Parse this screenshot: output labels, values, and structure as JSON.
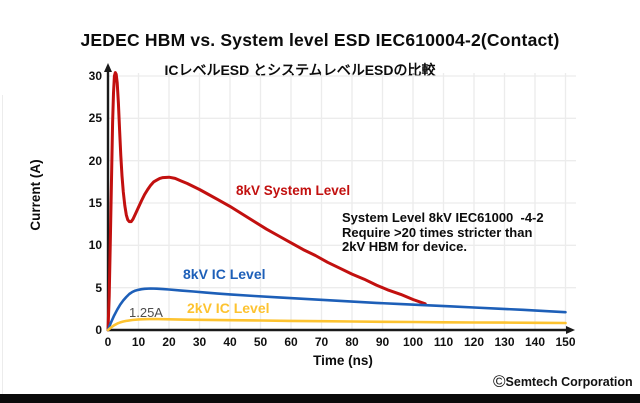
{
  "page": {
    "title": "JEDEC HBM vs. System level ESD IEC610004-2(Contact)",
    "subtitle": "ICレベルESD とシステムレベルESDの比較",
    "copyright_symbol": "©",
    "copyright_text": "Semtech Corporation"
  },
  "annotation": {
    "line1": "System Level 8kV IEC61000  -4-2",
    "line2": "Require >20 times stricter than",
    "line3": "2kV HBM for device."
  },
  "labels": {
    "system_level": "8kV System Level",
    "ic_8kv": "8kV IC Level",
    "ic_2kv": "2kV IC Level",
    "current_marker": "1.25A"
  },
  "colors": {
    "red": "#c2100f",
    "blue": "#1d5fb8",
    "yellow": "#fdc330",
    "axis": "#1a1a1a",
    "grid": "#ececec",
    "gray_label": "#4d4d4d"
  },
  "chart_data": {
    "type": "line",
    "title": "JEDEC HBM vs. System level ESD IEC610004-2(Contact)",
    "subtitle": "ICレベルESD とシステムレベルESDの比較",
    "xlabel": "Time (ns)",
    "ylabel": "Current (A)",
    "xlim": [
      0,
      150
    ],
    "ylim": [
      0,
      30
    ],
    "x_ticks": [
      0,
      10,
      20,
      30,
      40,
      50,
      60,
      70,
      80,
      90,
      100,
      110,
      120,
      130,
      140,
      150
    ],
    "y_ticks": [
      0,
      5,
      10,
      15,
      20,
      25,
      30
    ],
    "grid": true,
    "legend_position": "inline-labels",
    "annotations": [
      "System Level 8kV IEC61000  -4-2 Require >20 times stricter than 2kV HBM for device.",
      "1.25A marker on 2kV IC Level curve"
    ],
    "series": [
      {
        "name": "8kV System Level",
        "color": "#c2100f",
        "width": 3,
        "points": [
          [
            0,
            0
          ],
          [
            0.4,
            4
          ],
          [
            0.8,
            11
          ],
          [
            1.2,
            19
          ],
          [
            1.5,
            24.5
          ],
          [
            1.8,
            28
          ],
          [
            2.1,
            30
          ],
          [
            2.4,
            30.4
          ],
          [
            2.7,
            30.2
          ],
          [
            3.0,
            29.2
          ],
          [
            3.4,
            26.8
          ],
          [
            3.8,
            23.6
          ],
          [
            4.2,
            20.6
          ],
          [
            4.6,
            18.2
          ],
          [
            5.0,
            16.3
          ],
          [
            5.5,
            14.7
          ],
          [
            6.0,
            13.6
          ],
          [
            6.5,
            13.0
          ],
          [
            7.0,
            12.8
          ],
          [
            7.6,
            12.8
          ],
          [
            8.2,
            13.1
          ],
          [
            9,
            13.7
          ],
          [
            10,
            14.5
          ],
          [
            11,
            15.3
          ],
          [
            12,
            16.0
          ],
          [
            13,
            16.6
          ],
          [
            14,
            17.1
          ],
          [
            15,
            17.5
          ],
          [
            16,
            17.7
          ],
          [
            17,
            17.9
          ],
          [
            18,
            18.0
          ],
          [
            20,
            18.05
          ],
          [
            22,
            17.9
          ],
          [
            24,
            17.6
          ],
          [
            26,
            17.3
          ],
          [
            28,
            16.95
          ],
          [
            30,
            16.6
          ],
          [
            33,
            16.0
          ],
          [
            36,
            15.4
          ],
          [
            40,
            14.6
          ],
          [
            44,
            13.7
          ],
          [
            48,
            12.8
          ],
          [
            52,
            11.9
          ],
          [
            56,
            11.1
          ],
          [
            60,
            10.3
          ],
          [
            64,
            9.5
          ],
          [
            68,
            8.8
          ],
          [
            72,
            8.0
          ],
          [
            76,
            7.3
          ],
          [
            80,
            6.6
          ],
          [
            84,
            6.0
          ],
          [
            88,
            5.3
          ],
          [
            92,
            4.7
          ],
          [
            96,
            4.2
          ],
          [
            100,
            3.6
          ],
          [
            104,
            3.1
          ]
        ]
      },
      {
        "name": "8kV IC Level",
        "color": "#1d5fb8",
        "width": 2.6,
        "points": [
          [
            0,
            0
          ],
          [
            1,
            0.9
          ],
          [
            2,
            1.7
          ],
          [
            3,
            2.4
          ],
          [
            4,
            3.0
          ],
          [
            5,
            3.5
          ],
          [
            6,
            3.9
          ],
          [
            7,
            4.25
          ],
          [
            8,
            4.5
          ],
          [
            9,
            4.65
          ],
          [
            10,
            4.75
          ],
          [
            11,
            4.82
          ],
          [
            12,
            4.87
          ],
          [
            14,
            4.9
          ],
          [
            16,
            4.88
          ],
          [
            18,
            4.83
          ],
          [
            20,
            4.78
          ],
          [
            24,
            4.65
          ],
          [
            28,
            4.55
          ],
          [
            32,
            4.42
          ],
          [
            36,
            4.3
          ],
          [
            40,
            4.2
          ],
          [
            48,
            4.02
          ],
          [
            56,
            3.85
          ],
          [
            64,
            3.68
          ],
          [
            72,
            3.52
          ],
          [
            80,
            3.36
          ],
          [
            88,
            3.2
          ],
          [
            96,
            3.06
          ],
          [
            104,
            2.93
          ],
          [
            112,
            2.8
          ],
          [
            120,
            2.66
          ],
          [
            128,
            2.52
          ],
          [
            136,
            2.38
          ],
          [
            144,
            2.22
          ],
          [
            150,
            2.1
          ]
        ]
      },
      {
        "name": "2kV IC Level",
        "color": "#fdc330",
        "width": 2.6,
        "points": [
          [
            0,
            0
          ],
          [
            1,
            0.3
          ],
          [
            2,
            0.55
          ],
          [
            3,
            0.75
          ],
          [
            4,
            0.9
          ],
          [
            5,
            1.0
          ],
          [
            6,
            1.08
          ],
          [
            8,
            1.18
          ],
          [
            10,
            1.25
          ],
          [
            12,
            1.28
          ],
          [
            15,
            1.3
          ],
          [
            18,
            1.28
          ],
          [
            22,
            1.25
          ],
          [
            26,
            1.22
          ],
          [
            30,
            1.2
          ],
          [
            40,
            1.16
          ],
          [
            50,
            1.12
          ],
          [
            60,
            1.08
          ],
          [
            70,
            1.04
          ],
          [
            80,
            1.0
          ],
          [
            90,
            0.97
          ],
          [
            100,
            0.94
          ],
          [
            110,
            0.91
          ],
          [
            120,
            0.89
          ],
          [
            130,
            0.87
          ],
          [
            140,
            0.85
          ],
          [
            150,
            0.83
          ]
        ]
      }
    ]
  }
}
